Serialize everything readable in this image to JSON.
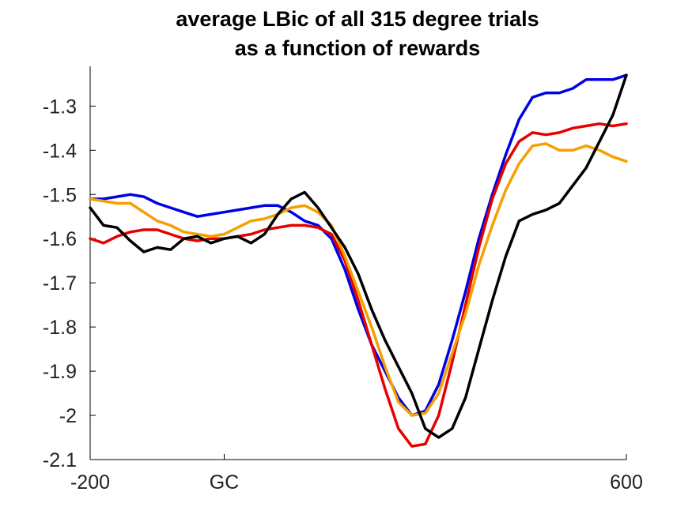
{
  "chart_data": {
    "type": "line",
    "title": [
      "average LBic of all 315 degree trials",
      "as a function of rewards"
    ],
    "xlabel": "",
    "ylabel": "",
    "xlim": [
      -200,
      600
    ],
    "ylim": [
      -2.1,
      -1.21
    ],
    "x_ticks": [
      {
        "value": -200,
        "label": "-200"
      },
      {
        "value": 0,
        "label": "GC"
      },
      {
        "value": 600,
        "label": "600"
      }
    ],
    "y_ticks": [
      {
        "value": -1.3,
        "label": "-1.3"
      },
      {
        "value": -1.4,
        "label": "-1.4"
      },
      {
        "value": -1.5,
        "label": "-1.5"
      },
      {
        "value": -1.6,
        "label": "-1.6"
      },
      {
        "value": -1.7,
        "label": "-1.7"
      },
      {
        "value": -1.8,
        "label": "-1.8"
      },
      {
        "value": -1.9,
        "label": "-1.9"
      },
      {
        "value": -2,
        "label": "-2"
      },
      {
        "value": -2.1,
        "label": "-2.1"
      }
    ],
    "grid": false,
    "legend": "none",
    "x": [
      -200,
      -180,
      -160,
      -140,
      -120,
      -100,
      -80,
      -60,
      -40,
      -20,
      0,
      20,
      40,
      60,
      80,
      100,
      120,
      140,
      160,
      180,
      200,
      220,
      240,
      260,
      280,
      300,
      320,
      340,
      360,
      380,
      400,
      420,
      440,
      460,
      480,
      500,
      520,
      540,
      560,
      580,
      600
    ],
    "series": [
      {
        "color": "#0000e6",
        "values": [
          -1.51,
          -1.51,
          -1.505,
          -1.5,
          -1.505,
          -1.52,
          -1.53,
          -1.54,
          -1.55,
          -1.545,
          -1.54,
          -1.535,
          -1.53,
          -1.525,
          -1.525,
          -1.54,
          -1.56,
          -1.57,
          -1.6,
          -1.67,
          -1.76,
          -1.84,
          -1.9,
          -1.96,
          -2.0,
          -1.99,
          -1.93,
          -1.83,
          -1.72,
          -1.6,
          -1.5,
          -1.41,
          -1.33,
          -1.28,
          -1.27,
          -1.27,
          -1.26,
          -1.24,
          -1.24,
          -1.24,
          -1.23
        ]
      },
      {
        "color": "#e60000",
        "values": [
          -1.6,
          -1.61,
          -1.595,
          -1.585,
          -1.58,
          -1.58,
          -1.59,
          -1.6,
          -1.605,
          -1.6,
          -1.6,
          -1.595,
          -1.59,
          -1.58,
          -1.575,
          -1.57,
          -1.57,
          -1.575,
          -1.59,
          -1.65,
          -1.74,
          -1.84,
          -1.94,
          -2.03,
          -2.07,
          -2.065,
          -2.0,
          -1.88,
          -1.75,
          -1.62,
          -1.51,
          -1.43,
          -1.38,
          -1.36,
          -1.365,
          -1.36,
          -1.35,
          -1.345,
          -1.34,
          -1.345,
          -1.34
        ]
      },
      {
        "color": "#f5a000",
        "values": [
          -1.51,
          -1.515,
          -1.52,
          -1.52,
          -1.54,
          -1.56,
          -1.57,
          -1.585,
          -1.59,
          -1.595,
          -1.59,
          -1.575,
          -1.56,
          -1.555,
          -1.545,
          -1.53,
          -1.525,
          -1.54,
          -1.57,
          -1.64,
          -1.72,
          -1.8,
          -1.89,
          -1.97,
          -2.0,
          -1.995,
          -1.95,
          -1.86,
          -1.77,
          -1.66,
          -1.57,
          -1.49,
          -1.43,
          -1.39,
          -1.385,
          -1.4,
          -1.4,
          -1.39,
          -1.4,
          -1.415,
          -1.425
        ]
      },
      {
        "color": "#000000",
        "values": [
          -1.53,
          -1.57,
          -1.575,
          -1.605,
          -1.63,
          -1.62,
          -1.625,
          -1.6,
          -1.595,
          -1.61,
          -1.6,
          -1.595,
          -1.61,
          -1.59,
          -1.545,
          -1.51,
          -1.495,
          -1.53,
          -1.575,
          -1.62,
          -1.68,
          -1.76,
          -1.83,
          -1.89,
          -1.95,
          -2.03,
          -2.05,
          -2.03,
          -1.96,
          -1.85,
          -1.74,
          -1.64,
          -1.56,
          -1.545,
          -1.535,
          -1.52,
          -1.48,
          -1.44,
          -1.38,
          -1.32,
          -1.23
        ]
      }
    ]
  }
}
